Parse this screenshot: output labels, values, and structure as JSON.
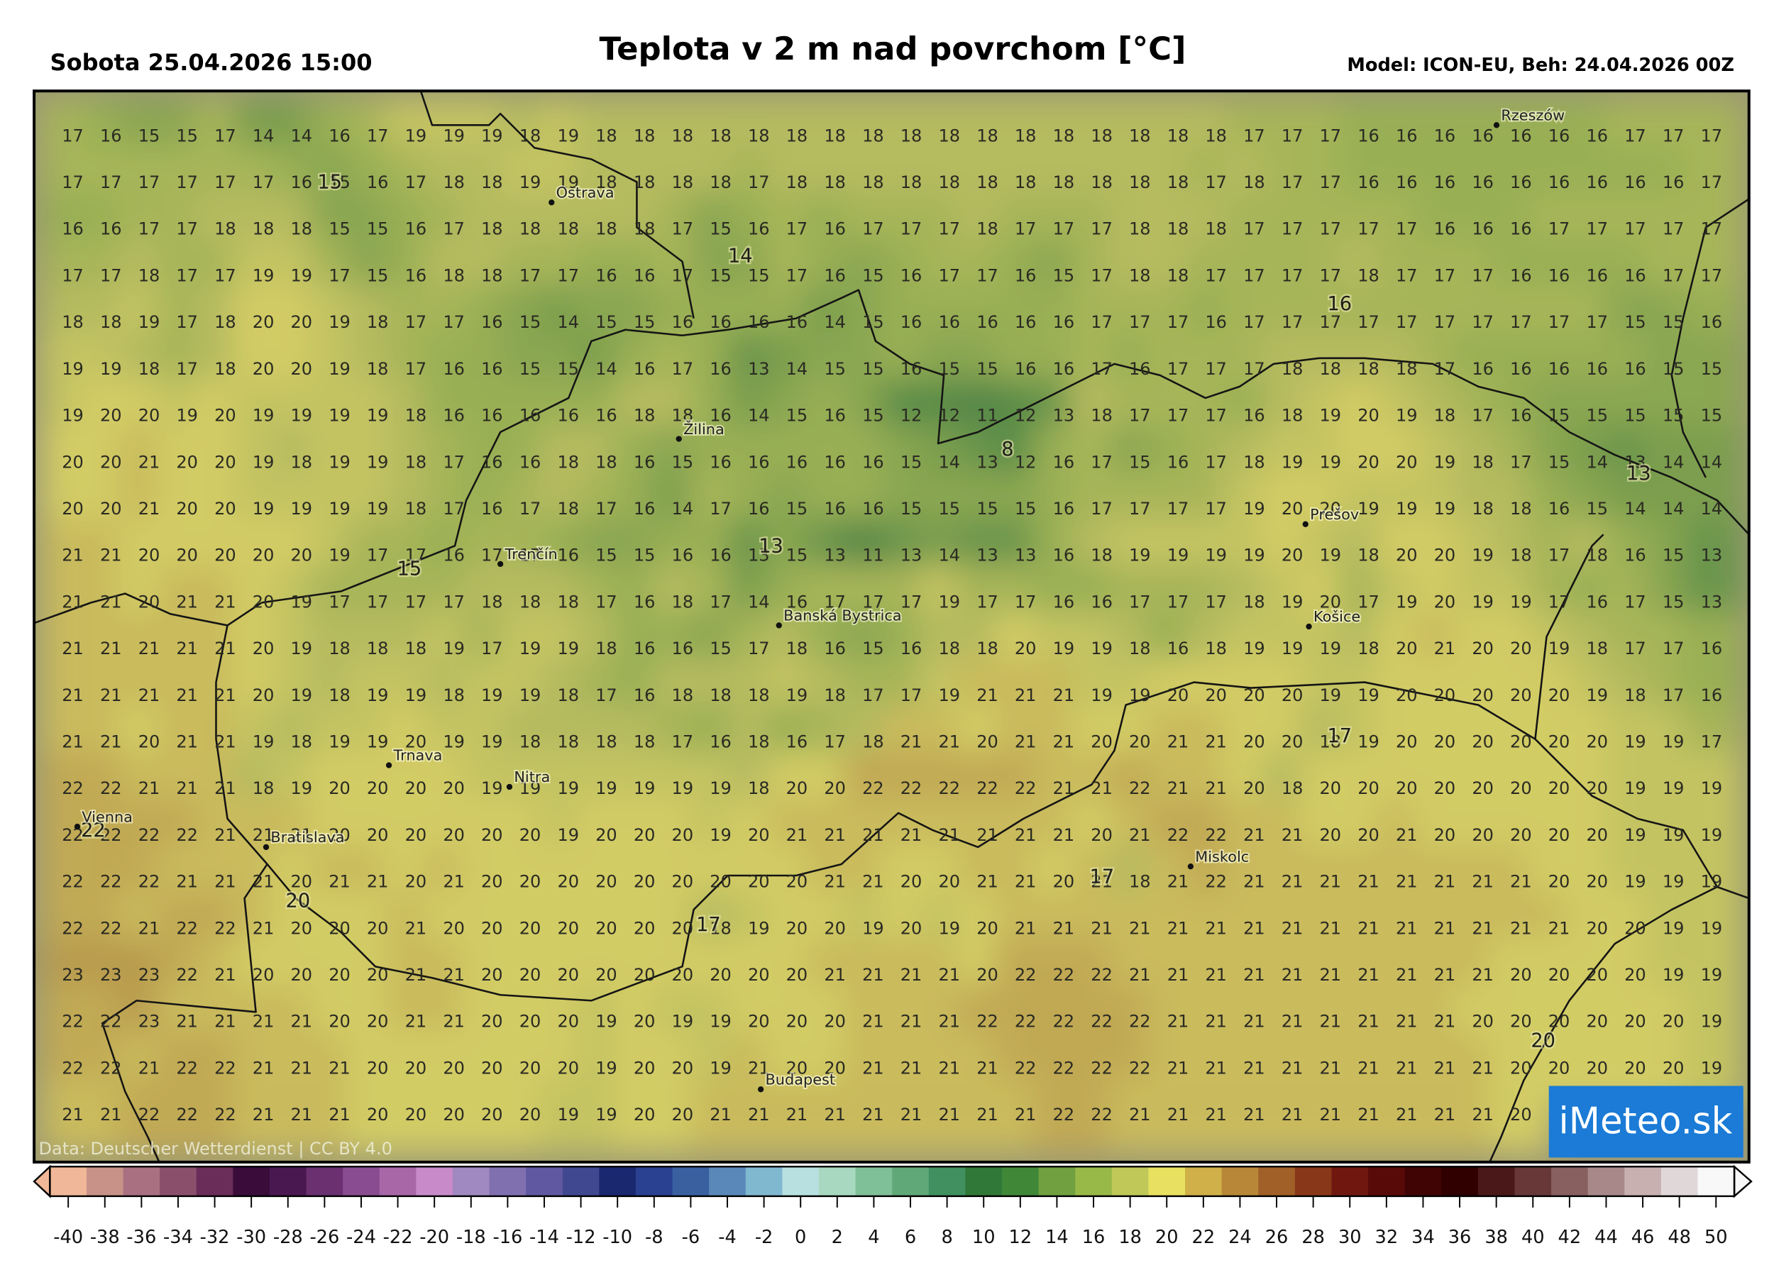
{
  "header": {
    "date": "Sobota 25.04.2026 15:00",
    "title": "Teplota v 2 m nad povrchom [°C]",
    "model": "Model: ICON-EU, Beh: 24.04.2026 00Z"
  },
  "attribution": "Data: Deutscher Wetterdienst | CC BY 4.0",
  "logo": "iMeteo.sk",
  "grid": {
    "rows": [
      [
        17,
        16,
        15,
        15,
        17,
        14,
        14,
        16,
        17,
        19,
        19,
        19,
        18,
        19,
        18,
        18,
        18,
        18,
        18,
        18,
        18,
        18,
        18,
        18,
        18,
        18,
        18,
        18,
        18,
        18,
        18,
        17,
        17,
        17,
        16,
        16,
        16,
        16,
        16,
        16,
        16,
        17,
        17,
        17
      ],
      [
        17,
        17,
        17,
        17,
        17,
        17,
        16,
        15,
        16,
        17,
        18,
        18,
        19,
        19,
        18,
        18,
        18,
        18,
        17,
        18,
        18,
        18,
        18,
        18,
        18,
        18,
        18,
        18,
        18,
        18,
        17,
        18,
        17,
        17,
        16,
        16,
        16,
        16,
        16,
        16,
        16,
        16,
        16,
        17
      ],
      [
        16,
        16,
        17,
        17,
        18,
        18,
        18,
        15,
        15,
        16,
        17,
        18,
        18,
        18,
        18,
        18,
        17,
        15,
        16,
        17,
        16,
        17,
        17,
        17,
        18,
        17,
        17,
        17,
        18,
        18,
        18,
        17,
        17,
        17,
        17,
        17,
        16,
        16,
        16,
        17,
        17,
        17,
        17,
        17
      ],
      [
        17,
        17,
        18,
        17,
        17,
        19,
        19,
        17,
        15,
        16,
        18,
        18,
        17,
        17,
        16,
        16,
        17,
        15,
        15,
        17,
        16,
        15,
        16,
        17,
        17,
        16,
        15,
        17,
        18,
        18,
        17,
        17,
        17,
        17,
        18,
        17,
        17,
        17,
        16,
        16,
        16,
        16,
        17,
        17
      ],
      [
        18,
        18,
        19,
        17,
        18,
        20,
        20,
        19,
        18,
        17,
        17,
        16,
        15,
        14,
        15,
        15,
        16,
        16,
        16,
        16,
        14,
        15,
        16,
        16,
        16,
        16,
        16,
        17,
        17,
        17,
        16,
        17,
        17,
        17,
        17,
        17,
        17,
        17,
        17,
        17,
        17,
        15,
        15,
        16
      ],
      [
        19,
        19,
        18,
        17,
        18,
        20,
        20,
        19,
        18,
        17,
        16,
        16,
        15,
        15,
        14,
        16,
        17,
        16,
        13,
        14,
        15,
        15,
        16,
        15,
        15,
        16,
        16,
        17,
        16,
        17,
        17,
        17,
        18,
        18,
        18,
        18,
        17,
        16,
        16,
        16,
        16,
        16,
        15,
        15
      ],
      [
        19,
        20,
        20,
        19,
        20,
        19,
        19,
        19,
        19,
        18,
        16,
        16,
        16,
        16,
        16,
        18,
        18,
        16,
        14,
        15,
        16,
        15,
        12,
        12,
        11,
        12,
        13,
        18,
        17,
        17,
        17,
        16,
        18,
        19,
        20,
        19,
        18,
        17,
        16,
        15,
        15,
        15,
        15,
        15
      ],
      [
        20,
        20,
        21,
        20,
        20,
        19,
        18,
        19,
        19,
        18,
        17,
        16,
        16,
        18,
        18,
        16,
        15,
        16,
        16,
        16,
        16,
        16,
        15,
        14,
        13,
        12,
        16,
        17,
        15,
        16,
        17,
        18,
        19,
        19,
        20,
        20,
        19,
        18,
        17,
        15,
        14,
        13,
        14,
        14
      ],
      [
        20,
        20,
        21,
        20,
        20,
        19,
        19,
        19,
        19,
        18,
        17,
        16,
        17,
        18,
        17,
        16,
        14,
        17,
        16,
        15,
        16,
        16,
        15,
        15,
        15,
        15,
        16,
        17,
        17,
        17,
        17,
        19,
        20,
        20,
        19,
        19,
        19,
        18,
        18,
        16,
        15,
        14,
        14,
        14
      ],
      [
        21,
        21,
        20,
        20,
        20,
        20,
        20,
        19,
        17,
        17,
        16,
        17,
        17,
        16,
        15,
        15,
        16,
        16,
        13,
        15,
        13,
        11,
        13,
        14,
        13,
        13,
        16,
        18,
        19,
        19,
        19,
        19,
        20,
        19,
        18,
        20,
        20,
        19,
        18,
        17,
        18,
        16,
        15,
        13
      ],
      [
        21,
        21,
        20,
        21,
        21,
        20,
        19,
        17,
        17,
        17,
        17,
        18,
        18,
        18,
        17,
        16,
        18,
        17,
        14,
        16,
        17,
        17,
        17,
        19,
        17,
        17,
        16,
        16,
        17,
        17,
        17,
        18,
        19,
        20,
        17,
        19,
        20,
        19,
        19,
        17,
        16,
        17,
        15,
        13
      ],
      [
        21,
        21,
        21,
        21,
        21,
        20,
        19,
        18,
        18,
        18,
        19,
        17,
        19,
        19,
        18,
        16,
        16,
        15,
        17,
        18,
        16,
        15,
        16,
        18,
        18,
        20,
        19,
        19,
        18,
        16,
        18,
        19,
        19,
        19,
        18,
        20,
        21,
        20,
        20,
        19,
        18,
        17,
        17,
        16
      ],
      [
        21,
        21,
        21,
        21,
        21,
        20,
        19,
        18,
        19,
        19,
        18,
        19,
        19,
        18,
        17,
        16,
        18,
        18,
        18,
        19,
        18,
        17,
        17,
        19,
        21,
        21,
        21,
        19,
        19,
        20,
        20,
        20,
        20,
        19,
        19,
        20,
        20,
        20,
        20,
        20,
        19,
        18,
        17,
        16
      ],
      [
        21,
        21,
        20,
        21,
        21,
        19,
        18,
        19,
        19,
        20,
        19,
        19,
        18,
        18,
        18,
        18,
        17,
        16,
        18,
        16,
        17,
        18,
        21,
        21,
        20,
        21,
        21,
        20,
        20,
        21,
        21,
        20,
        20,
        18,
        19,
        20,
        20,
        20,
        20,
        20,
        20,
        19,
        19,
        17
      ],
      [
        22,
        22,
        21,
        21,
        21,
        18,
        19,
        20,
        20,
        20,
        20,
        19,
        19,
        19,
        19,
        19,
        19,
        19,
        18,
        20,
        20,
        22,
        22,
        22,
        22,
        22,
        21,
        21,
        22,
        21,
        21,
        20,
        18,
        20,
        20,
        20,
        20,
        20,
        20,
        20,
        20,
        19,
        19,
        19
      ],
      [
        22,
        22,
        22,
        22,
        21,
        21,
        21,
        20,
        20,
        20,
        20,
        20,
        20,
        19,
        20,
        20,
        20,
        19,
        20,
        21,
        21,
        21,
        21,
        21,
        21,
        21,
        21,
        20,
        21,
        22,
        22,
        21,
        21,
        20,
        20,
        21,
        20,
        20,
        20,
        20,
        20,
        19,
        19,
        19
      ],
      [
        22,
        22,
        22,
        21,
        21,
        21,
        20,
        21,
        21,
        20,
        21,
        20,
        20,
        20,
        20,
        20,
        20,
        20,
        20,
        20,
        21,
        21,
        20,
        20,
        21,
        21,
        20,
        21,
        18,
        21,
        22,
        21,
        21,
        21,
        21,
        21,
        21,
        21,
        21,
        20,
        20,
        19,
        19,
        19
      ],
      [
        22,
        22,
        21,
        22,
        22,
        21,
        20,
        20,
        20,
        21,
        20,
        20,
        20,
        20,
        20,
        20,
        20,
        18,
        19,
        20,
        20,
        19,
        20,
        19,
        20,
        21,
        21,
        21,
        21,
        21,
        21,
        21,
        21,
        21,
        21,
        21,
        21,
        21,
        21,
        21,
        20,
        20,
        19,
        19
      ],
      [
        23,
        23,
        23,
        22,
        21,
        20,
        20,
        20,
        20,
        21,
        21,
        20,
        20,
        20,
        20,
        20,
        20,
        20,
        20,
        20,
        21,
        21,
        21,
        21,
        20,
        22,
        22,
        22,
        21,
        21,
        21,
        21,
        21,
        21,
        21,
        21,
        21,
        21,
        20,
        20,
        20,
        20,
        19,
        19
      ],
      [
        22,
        22,
        23,
        21,
        21,
        21,
        21,
        20,
        20,
        21,
        21,
        20,
        20,
        20,
        19,
        20,
        19,
        19,
        20,
        20,
        20,
        21,
        21,
        21,
        22,
        22,
        22,
        22,
        22,
        21,
        21,
        21,
        21,
        21,
        21,
        21,
        21,
        20,
        20,
        20,
        20,
        20,
        20,
        19
      ],
      [
        22,
        22,
        21,
        22,
        22,
        21,
        21,
        21,
        20,
        20,
        20,
        20,
        20,
        20,
        19,
        20,
        20,
        19,
        21,
        20,
        20,
        21,
        21,
        21,
        21,
        22,
        22,
        22,
        22,
        21,
        21,
        21,
        21,
        21,
        21,
        21,
        21,
        21,
        20,
        20,
        20,
        20,
        20,
        19
      ],
      [
        21,
        21,
        22,
        22,
        22,
        21,
        21,
        21,
        20,
        20,
        20,
        20,
        20,
        19,
        19,
        20,
        20,
        21,
        21,
        21,
        21,
        21,
        21,
        21,
        21,
        21,
        22,
        22,
        21,
        21,
        21,
        21,
        21,
        21,
        21,
        21,
        21,
        21,
        20,
        null,
        null,
        null,
        null,
        null
      ]
    ]
  },
  "contour_labels": [
    15,
    14,
    16,
    8,
    13,
    13,
    15,
    17,
    22,
    20,
    17,
    17,
    20
  ],
  "cities": [
    "Rzeszów",
    "Ostrava",
    "Žilina",
    "Trenčín",
    "Banská Bystrica",
    "Prešov",
    "Košice",
    "Trnava",
    "Nitra",
    "Vienna",
    "Bratislava",
    "Miskolc",
    "Budapest"
  ],
  "colorbar": {
    "ticks": [
      -40,
      -38,
      -36,
      -34,
      -32,
      -30,
      -28,
      -26,
      -24,
      -22,
      -20,
      -18,
      -16,
      -14,
      -12,
      -10,
      -8,
      -6,
      -4,
      -2,
      0,
      2,
      4,
      6,
      8,
      10,
      12,
      14,
      16,
      18,
      20,
      22,
      24,
      26,
      28,
      30,
      32,
      34,
      36,
      38,
      40,
      42,
      44,
      46,
      48,
      50
    ],
    "colors": [
      "#f0b898",
      "#c89288",
      "#a87080",
      "#8a4f6b",
      "#6a2c58",
      "#3a0c3a",
      "#4a1850",
      "#6a3070",
      "#8a4c90",
      "#a868a8",
      "#c88ac8",
      "#a088c0",
      "#8070b0",
      "#6058a0",
      "#404890",
      "#1a2870",
      "#2a4090",
      "#3a60a0",
      "#5a88b8",
      "#80b8d0",
      "#b8e0e0",
      "#a8d8c0",
      "#80c098",
      "#60a878",
      "#409060",
      "#307838",
      "#408838",
      "#70a040",
      "#98b848",
      "#c0c858",
      "#e8e060",
      "#d0b048",
      "#b88838",
      "#a06028",
      "#883818",
      "#701810",
      "#580a08",
      "#400404",
      "#300000",
      "#4a1818",
      "#683838",
      "#886060",
      "#a88888",
      "#c8b0b0",
      "#e0d8d8",
      "#f8f8f8"
    ]
  }
}
